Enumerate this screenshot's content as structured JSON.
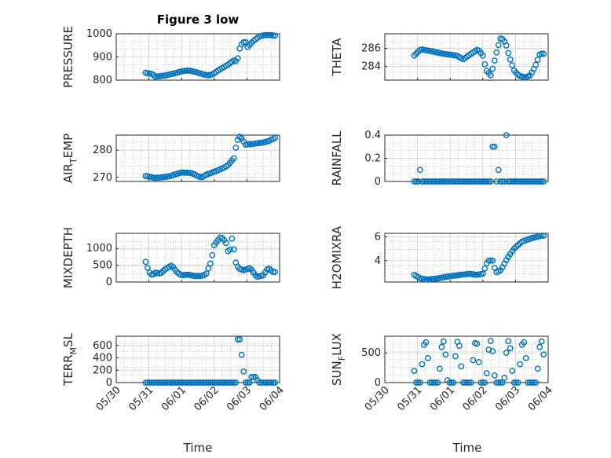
{
  "figure": {
    "title": "Figure 3 low",
    "xlabel": "Time"
  },
  "colors": {
    "marker": "#0072BD",
    "axis": "#262626",
    "grid": "#b0b0b0",
    "background": "#ffffff"
  },
  "chart_data": [
    {
      "type": "scatter",
      "ylabel_main": "PRESSURE",
      "ylabel_sub": "",
      "ylim": [
        800,
        1000
      ],
      "yticks": [
        "800",
        "900",
        "1000"
      ],
      "ytick_values": [
        800,
        900,
        1000
      ],
      "xlim": [
        "05/30",
        "06/04"
      ],
      "xticks": [],
      "x_days": [],
      "y": []
    }
  ]
}
